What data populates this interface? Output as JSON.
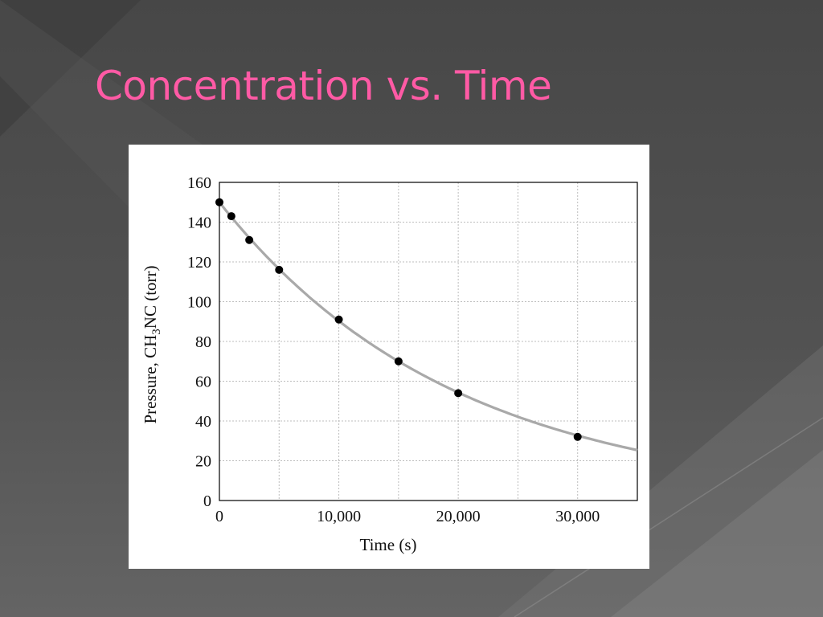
{
  "slide": {
    "title": "Concentration vs. Time"
  },
  "colors": {
    "title": "#ff5aa5",
    "background": "#4c4c4c",
    "grid": "#bdbdbd",
    "curve": "#a9a9a9",
    "points": "#000000"
  },
  "chart_data": {
    "type": "scatter",
    "title": "",
    "xlabel": "Time (s)",
    "ylabel": "Pressure, CH3NC (torr)",
    "ylabel_parts": {
      "before": "Pressure, CH",
      "sub": "3",
      "after": "NC (torr)"
    },
    "xlim": [
      0,
      35000
    ],
    "ylim": [
      0,
      160
    ],
    "grid": true,
    "x_ticks": [
      0,
      10000,
      20000,
      30000
    ],
    "x_tick_labels": [
      "0",
      "10,000",
      "20,000",
      "30,000"
    ],
    "y_ticks": [
      0,
      20,
      40,
      60,
      80,
      100,
      120,
      140,
      160
    ],
    "y_tick_labels": [
      "0",
      "20",
      "40",
      "60",
      "80",
      "100",
      "120",
      "140",
      "160"
    ],
    "x_grid": [
      5000,
      10000,
      15000,
      20000,
      25000,
      30000
    ],
    "y_grid": [
      20,
      40,
      60,
      80,
      100,
      120,
      140
    ],
    "series": [
      {
        "points": [
          {
            "x": 0,
            "y": 150
          },
          {
            "x": 1000,
            "y": 143
          },
          {
            "x": 2500,
            "y": 131
          },
          {
            "x": 5000,
            "y": 116
          },
          {
            "x": 10000,
            "y": 91
          },
          {
            "x": 15000,
            "y": 70
          },
          {
            "x": 20000,
            "y": 54
          },
          {
            "x": 30000,
            "y": 32
          }
        ]
      }
    ],
    "fit": {
      "type": "exponential",
      "y0": 150,
      "k": 5.08e-05
    }
  }
}
